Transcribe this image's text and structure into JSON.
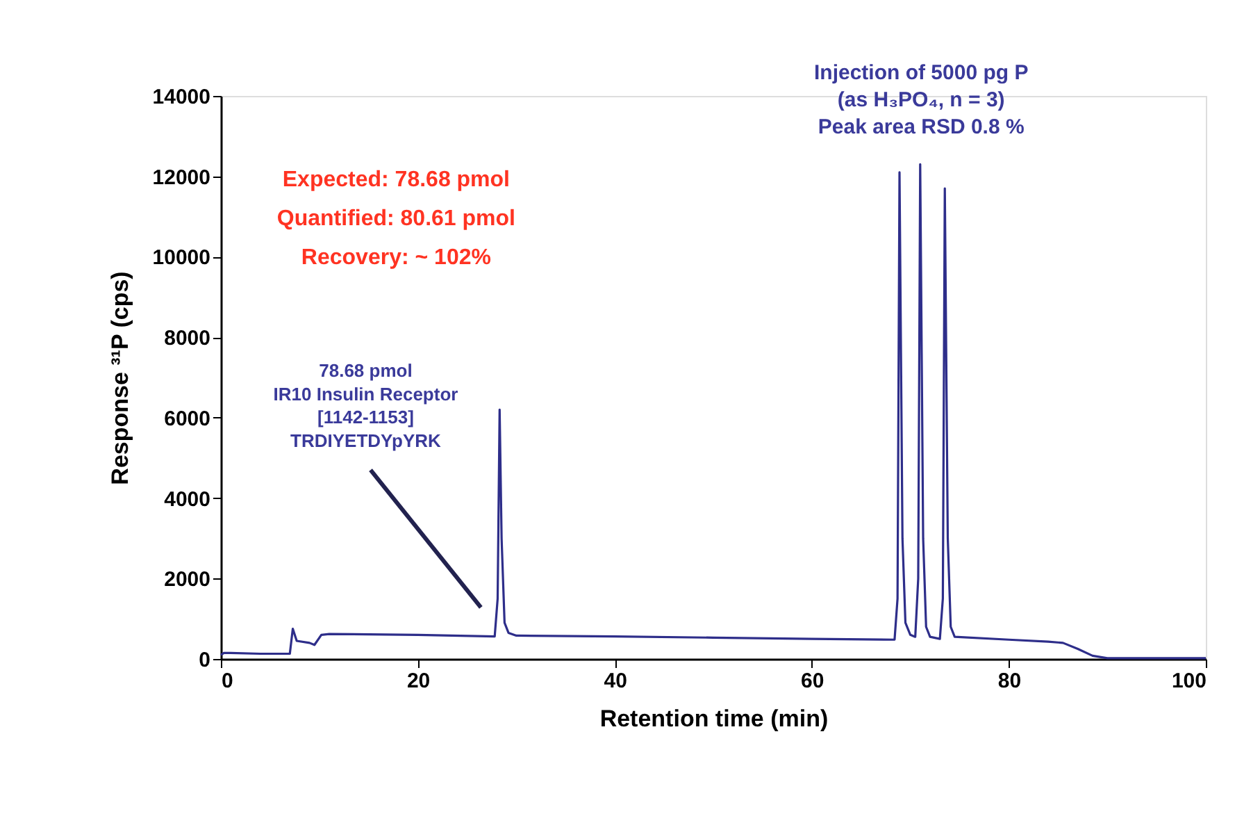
{
  "chart_data": {
    "type": "line",
    "xlabel": "Retention time (min)",
    "ylabel": "Response ³¹P (cps)",
    "xlim": [
      0,
      100
    ],
    "xticks": [
      0,
      20,
      40,
      60,
      80,
      100
    ],
    "ylim": [
      0,
      14000
    ],
    "yticks": [
      0,
      2000,
      4000,
      6000,
      8000,
      10000,
      12000,
      14000
    ],
    "grid": false,
    "marker": "none",
    "line_style": "solid",
    "x": [
      0,
      0.3,
      1,
      4,
      7,
      7.3,
      7.7,
      9,
      9.5,
      10.2,
      11,
      20,
      27.8,
      28.1,
      28.3,
      28.5,
      28.8,
      29.2,
      30,
      40,
      50,
      60,
      68.4,
      68.7,
      68.9,
      69.2,
      69.5,
      70,
      70.5,
      70.8,
      71.0,
      71.3,
      71.6,
      72,
      73,
      73.3,
      73.5,
      73.8,
      74.1,
      74.5,
      80,
      84,
      85.5,
      87,
      88.5,
      90,
      100
    ],
    "series": [
      {
        "color": "#2e2e8a",
        "values": [
          100,
          150,
          150,
          130,
          130,
          750,
          450,
          400,
          350,
          600,
          620,
          600,
          560,
          1500,
          6200,
          3000,
          900,
          650,
          580,
          560,
          530,
          500,
          480,
          1500,
          12100,
          3000,
          900,
          600,
          550,
          2000,
          12300,
          3000,
          800,
          550,
          500,
          1500,
          11700,
          3000,
          800,
          550,
          480,
          430,
          400,
          250,
          80,
          20,
          20
        ]
      }
    ],
    "annotations": [
      "Expected: 78.68 pmol\nQuantified: 80.61 pmol\nRecovery: ~ 102%",
      "78.68 pmol\nIR10 Insulin Receptor\n[1142-1153]\nTRDIYETDYpYRK",
      "Injection of 5000 pg P\n(as H₃PO₄, n = 3)\nPeak area RSD 0.8 %"
    ]
  }
}
